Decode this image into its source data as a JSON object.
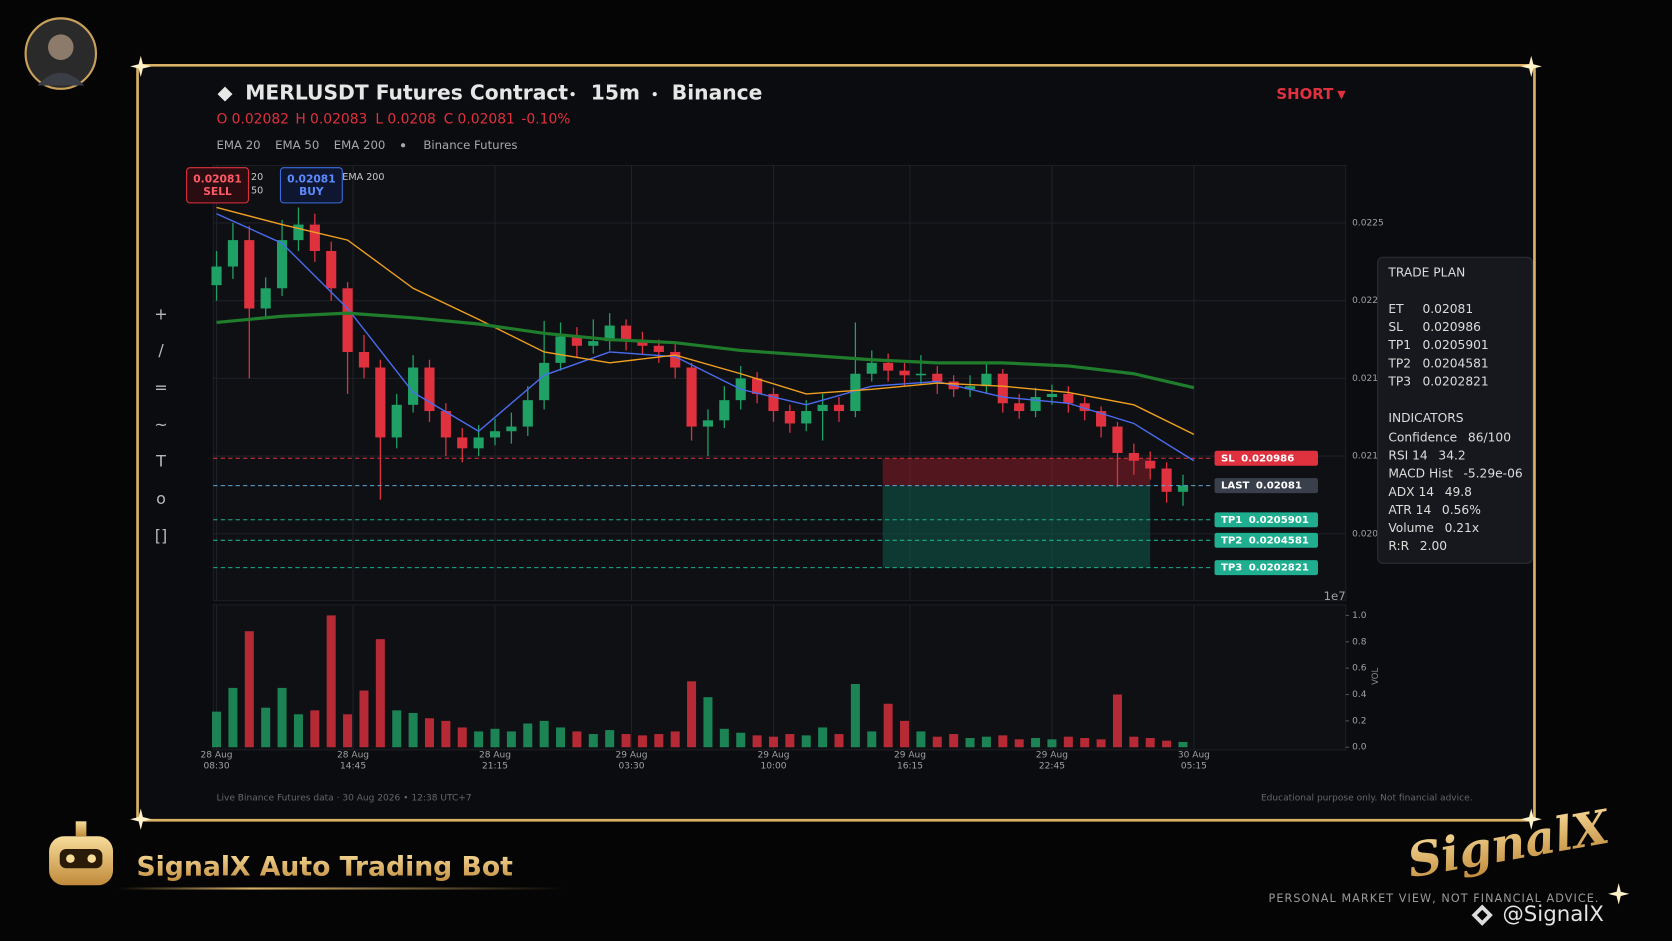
{
  "header": {
    "symbol": "MERLUSDT Futures Contract",
    "interval": "15m",
    "exchange": "Binance",
    "side": "SHORT",
    "ohlc": [
      {
        "label": "O",
        "value": 0.02082
      },
      {
        "label": "H",
        "value": 0.02083
      },
      {
        "label": "L",
        "value": 0.0208
      },
      {
        "label": "C",
        "value": 0.02081
      }
    ],
    "change": "-0.10%",
    "indicators": [
      "EMA 20",
      "EMA 50",
      "EMA 200"
    ],
    "source": "Binance Futures"
  },
  "toolbar": [
    "+",
    "/",
    "=",
    "~",
    "T",
    "o",
    "[]"
  ],
  "badges": {
    "sell": {
      "price": 0.02081,
      "label": "SELL"
    },
    "buy": {
      "price": 0.02081,
      "label": "BUY"
    }
  },
  "chart_data": [
    {
      "type": "candlestick",
      "xlim": [
        -0.6,
        206.8
      ],
      "ylim": [
        0.02007,
        0.02287
      ],
      "yticks": [
        {
          "value": 0.0205,
          "label": "0.020"
        },
        0.021,
        {
          "value": 0.0215,
          "label": "0.021"
        },
        0.022,
        0.0225
      ],
      "offset_text": "1e7",
      "grid": true,
      "up_color": "#1fa065",
      "down_color": "#e0313f",
      "x": [
        0,
        3,
        6,
        9,
        12,
        15,
        18,
        21,
        24,
        27,
        30,
        33,
        36,
        39,
        42,
        45,
        48,
        51,
        54,
        57,
        60,
        63,
        66,
        69,
        72,
        75,
        78,
        81,
        84,
        87,
        90,
        93,
        96,
        99,
        102,
        105,
        108,
        111,
        114,
        117,
        120,
        123,
        126,
        129,
        132,
        135,
        138,
        141,
        144,
        147,
        150,
        153,
        156,
        159,
        162,
        165,
        168,
        171,
        174,
        177
      ],
      "open": [
        0.0221,
        0.02222,
        0.02239,
        0.02195,
        0.02208,
        0.02239,
        0.02249,
        0.02232,
        0.02208,
        0.02167,
        0.02157,
        0.02112,
        0.02133,
        0.02157,
        0.02129,
        0.02112,
        0.02105,
        0.02112,
        0.02116,
        0.02119,
        0.02136,
        0.0216,
        0.02177,
        0.02171,
        0.02174,
        0.02184,
        0.02174,
        0.02171,
        0.02167,
        0.02157,
        0.02119,
        0.02123,
        0.02136,
        0.0215,
        0.0214,
        0.02129,
        0.02121,
        0.02129,
        0.02133,
        0.02129,
        0.02153,
        0.0216,
        0.02155,
        0.02152,
        0.02153,
        0.02148,
        0.02143,
        0.02145,
        0.02153,
        0.02134,
        0.02129,
        0.02138,
        0.0214,
        0.02134,
        0.02129,
        0.02119,
        0.02102,
        0.02097,
        0.02092,
        0.02077
      ],
      "high": [
        0.02232,
        0.0225,
        0.02248,
        0.02215,
        0.02252,
        0.0226,
        0.02256,
        0.02238,
        0.02212,
        0.02178,
        0.02162,
        0.0214,
        0.02165,
        0.02162,
        0.02134,
        0.02118,
        0.0212,
        0.02124,
        0.02128,
        0.02145,
        0.02187,
        0.02186,
        0.02183,
        0.02188,
        0.02192,
        0.02188,
        0.0218,
        0.02175,
        0.02172,
        0.0216,
        0.0213,
        0.02145,
        0.02158,
        0.02154,
        0.02144,
        0.02133,
        0.02136,
        0.0214,
        0.02138,
        0.02186,
        0.02168,
        0.02166,
        0.0216,
        0.02165,
        0.02158,
        0.02152,
        0.02152,
        0.0216,
        0.02156,
        0.0214,
        0.02144,
        0.02146,
        0.02145,
        0.02138,
        0.02132,
        0.02122,
        0.02108,
        0.02103,
        0.02096,
        0.02088
      ],
      "low": [
        0.022,
        0.02214,
        0.0215,
        0.02188,
        0.02203,
        0.02232,
        0.02225,
        0.022,
        0.0214,
        0.0215,
        0.02072,
        0.02105,
        0.02128,
        0.02122,
        0.021,
        0.02096,
        0.021,
        0.02107,
        0.02108,
        0.02113,
        0.0213,
        0.02155,
        0.02163,
        0.02166,
        0.02168,
        0.02168,
        0.02165,
        0.0216,
        0.0215,
        0.0211,
        0.021,
        0.02118,
        0.0213,
        0.02134,
        0.02122,
        0.02115,
        0.02116,
        0.0211,
        0.02122,
        0.02125,
        0.02148,
        0.02148,
        0.02145,
        0.02146,
        0.0214,
        0.02138,
        0.02138,
        0.0214,
        0.02128,
        0.02124,
        0.02125,
        0.02133,
        0.02128,
        0.02123,
        0.02112,
        0.0208,
        0.02088,
        0.02085,
        0.0207,
        0.02068
      ],
      "close": [
        0.02222,
        0.02239,
        0.02195,
        0.02208,
        0.02239,
        0.02249,
        0.02232,
        0.02208,
        0.02167,
        0.02157,
        0.02112,
        0.02133,
        0.02157,
        0.02129,
        0.02112,
        0.02105,
        0.02112,
        0.02116,
        0.02119,
        0.02136,
        0.0216,
        0.02177,
        0.02171,
        0.02174,
        0.02184,
        0.02174,
        0.02171,
        0.02167,
        0.02157,
        0.02119,
        0.02123,
        0.02136,
        0.0215,
        0.0214,
        0.02129,
        0.02121,
        0.02129,
        0.02133,
        0.02129,
        0.02153,
        0.0216,
        0.02155,
        0.02152,
        0.02153,
        0.02148,
        0.02143,
        0.02145,
        0.02153,
        0.02134,
        0.02129,
        0.02138,
        0.0214,
        0.02134,
        0.02129,
        0.02119,
        0.02102,
        0.02097,
        0.02092,
        0.02077,
        0.02081
      ],
      "series": [
        {
          "name": "EMA 20",
          "color": "#4a6cf0",
          "width": 1.3,
          "x": [
            0,
            12,
            24,
            36,
            48,
            60,
            72,
            84,
            96,
            108,
            120,
            132,
            144,
            156,
            168,
            179
          ],
          "values": [
            0.02256,
            0.02237,
            0.02195,
            0.02141,
            0.02116,
            0.02152,
            0.02167,
            0.02164,
            0.02143,
            0.02133,
            0.02145,
            0.02148,
            0.02138,
            0.02134,
            0.02121,
            0.02097
          ]
        },
        {
          "name": "EMA 50",
          "color": "#f0a020",
          "width": 1.3,
          "x": [
            0,
            12,
            24,
            36,
            48,
            60,
            72,
            84,
            96,
            108,
            120,
            132,
            144,
            156,
            168,
            179
          ],
          "values": [
            0.0226,
            0.02249,
            0.02239,
            0.02208,
            0.02188,
            0.02167,
            0.0216,
            0.02165,
            0.02153,
            0.0214,
            0.02143,
            0.02147,
            0.02145,
            0.02141,
            0.02133,
            0.02114
          ]
        },
        {
          "name": "EMA 200",
          "color": "#1f7d2c",
          "width": 3,
          "x": [
            0,
            12,
            24,
            36,
            48,
            60,
            72,
            84,
            96,
            108,
            120,
            132,
            144,
            156,
            168,
            179
          ],
          "values": [
            0.02186,
            0.0219,
            0.02192,
            0.02189,
            0.02185,
            0.02179,
            0.02175,
            0.02173,
            0.02168,
            0.02165,
            0.02162,
            0.0216,
            0.0216,
            0.02158,
            0.02153,
            0.02144
          ]
        }
      ],
      "zones": [
        {
          "from": 0.020986,
          "to": 0.02081,
          "x": [
            122,
            171
          ],
          "color": "#8a1c26"
        },
        {
          "from": 0.02081,
          "to": 0.0202821,
          "x": [
            122,
            171
          ],
          "color": "#0f5a4a"
        }
      ],
      "levels": [
        {
          "name": "SL",
          "value": 0.020986,
          "color": "#e0313f",
          "label_color": "#e0313f"
        },
        {
          "name": "LAST",
          "value": 0.02081,
          "color": "#5aa7d6",
          "label_color": "#3a404b"
        },
        {
          "name": "TP1",
          "value": 0.0205901,
          "color": "#1fae8f",
          "label_color": "#1fae8f"
        },
        {
          "name": "TP2",
          "value": 0.0204581,
          "color": "#1fae8f",
          "label_color": "#1fae8f"
        },
        {
          "name": "TP3",
          "value": 0.0202821,
          "color": "#1fae8f",
          "label_color": "#1fae8f"
        }
      ]
    },
    {
      "type": "bar",
      "ylabel": "VOL",
      "xlim": [
        -0.6,
        206.8
      ],
      "ylim": [
        -0.02,
        1.08
      ],
      "yticks": [
        {
          "value": 0,
          "label": "0.0"
        },
        0.2,
        0.4,
        0.6,
        0.8,
        {
          "value": 1,
          "label": "1.0"
        }
      ],
      "xticks": [
        {
          "value": 0,
          "label": [
            "28 Aug",
            "08:30"
          ]
        },
        {
          "value": 25,
          "label": [
            "28 Aug",
            "14:45"
          ]
        },
        {
          "value": 51,
          "label": [
            "28 Aug",
            "21:15"
          ]
        },
        {
          "value": 76,
          "label": [
            "29 Aug",
            "03:30"
          ]
        },
        {
          "value": 102,
          "label": [
            "29 Aug",
            "10:00"
          ]
        },
        {
          "value": 127,
          "label": [
            "29 Aug",
            "16:15"
          ]
        },
        {
          "value": 153,
          "label": [
            "29 Aug",
            "22:45"
          ]
        },
        {
          "value": 179,
          "label": [
            "30 Aug",
            "05:15"
          ]
        }
      ],
      "x": [
        0,
        3,
        6,
        9,
        12,
        15,
        18,
        21,
        24,
        27,
        30,
        33,
        36,
        39,
        42,
        45,
        48,
        51,
        54,
        57,
        60,
        63,
        66,
        69,
        72,
        75,
        78,
        81,
        84,
        87,
        90,
        93,
        96,
        99,
        102,
        105,
        108,
        111,
        114,
        117,
        120,
        123,
        126,
        129,
        132,
        135,
        138,
        141,
        144,
        147,
        150,
        153,
        156,
        159,
        162,
        165,
        168,
        171,
        174,
        177
      ],
      "values": [
        0.27,
        0.45,
        0.88,
        0.3,
        0.45,
        0.25,
        0.28,
        1.0,
        0.25,
        0.43,
        0.82,
        0.28,
        0.26,
        0.22,
        0.2,
        0.15,
        0.12,
        0.14,
        0.12,
        0.18,
        0.2,
        0.15,
        0.12,
        0.1,
        0.13,
        0.1,
        0.09,
        0.1,
        0.12,
        0.5,
        0.38,
        0.14,
        0.11,
        0.09,
        0.08,
        0.1,
        0.09,
        0.15,
        0.1,
        0.48,
        0.12,
        0.33,
        0.2,
        0.12,
        0.08,
        0.1,
        0.07,
        0.08,
        0.09,
        0.06,
        0.07,
        0.06,
        0.08,
        0.07,
        0.06,
        0.4,
        0.08,
        0.07,
        0.05,
        0.04
      ]
    }
  ],
  "trade_plan": {
    "title": "TRADE PLAN",
    "rows": [
      [
        "ET",
        0.02081
      ],
      [
        "SL",
        0.020986
      ],
      [
        "TP1",
        0.0205901
      ],
      [
        "TP2",
        0.0204581
      ],
      [
        "TP3",
        0.0202821
      ]
    ],
    "indicators_title": "INDICATORS",
    "indicators": [
      [
        "Confidence",
        "86/100"
      ],
      [
        "RSI 14",
        34.2
      ],
      [
        "MACD Hist",
        "-5.29e-06"
      ],
      [
        "ADX 14",
        49.8
      ],
      [
        "ATR 14",
        "0.56%"
      ],
      [
        "Volume",
        "0.21x"
      ],
      [
        "R:R",
        "2.00"
      ]
    ]
  },
  "footer": {
    "data_note": "Live Binance Futures data  ·  30 Aug 2026 • 12:38 UTC+7",
    "disclaimer": "Educational purpose only. Not financial advice.",
    "bot_name": "SignalX Auto Trading Bot",
    "logo": "SignalX",
    "tagline": "PERSONAL MARKET VIEW, NOT FINANCIAL ADVICE.",
    "handle": "@SignalX"
  }
}
